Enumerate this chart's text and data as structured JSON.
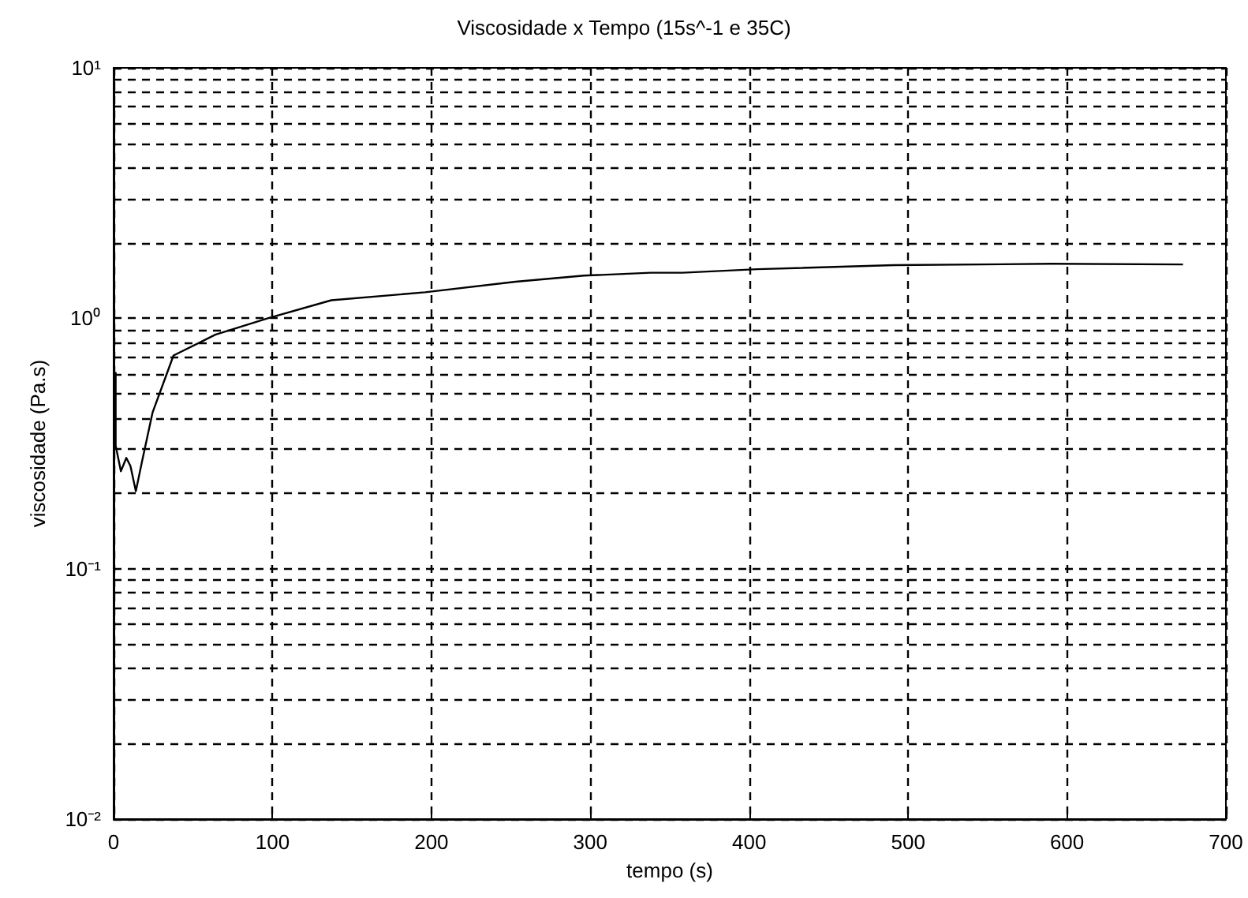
{
  "chart_data": {
    "type": "line",
    "title": "Viscosidade x Tempo (15s^-1 e 35C)",
    "xlabel": "tempo (s)",
    "ylabel": "viscosidade (Pa.s)",
    "log": "y",
    "grid": true,
    "marker": "none",
    "line_style": "solid",
    "xlim": [
      0,
      700
    ],
    "xticks": [
      0,
      100,
      200,
      300,
      400,
      500,
      600,
      700
    ],
    "ylim": [
      0.01,
      10
    ],
    "yticks": [
      {
        "value": 0.01,
        "label": "10⁻²"
      },
      {
        "value": 0.02,
        "label": null
      },
      {
        "value": 0.03,
        "label": null
      },
      {
        "value": 0.04,
        "label": null
      },
      {
        "value": 0.05,
        "label": null
      },
      {
        "value": 0.06,
        "label": null
      },
      {
        "value": 0.07,
        "label": null
      },
      {
        "value": 0.08,
        "label": null
      },
      {
        "value": 0.09,
        "label": null
      },
      {
        "value": 0.1,
        "label": "10⁻¹"
      },
      {
        "value": 0.2,
        "label": null
      },
      {
        "value": 0.3,
        "label": null
      },
      {
        "value": 0.4,
        "label": null
      },
      {
        "value": 0.5,
        "label": null
      },
      {
        "value": 0.6,
        "label": null
      },
      {
        "value": 0.7,
        "label": null
      },
      {
        "value": 0.8,
        "label": null
      },
      {
        "value": 0.9,
        "label": null
      },
      {
        "value": 1,
        "label": "10⁰"
      },
      {
        "value": 2,
        "label": null
      },
      {
        "value": 3,
        "label": null
      },
      {
        "value": 4,
        "label": null
      },
      {
        "value": 5,
        "label": null
      },
      {
        "value": 6,
        "label": null
      },
      {
        "value": 7,
        "label": null
      },
      {
        "value": 8,
        "label": null
      },
      {
        "value": 9,
        "label": null
      },
      {
        "value": 10,
        "label": "10¹"
      }
    ],
    "series": [
      {
        "color": "#000000",
        "x": [
          1.3,
          1.3,
          4.6,
          8,
          10.6,
          14,
          18,
          24.5,
          37.7,
          64,
          97,
          137,
          196,
          253,
          296,
          338,
          358,
          405,
          491,
          590,
          673
        ],
        "values": [
          0.61,
          0.31,
          0.245,
          0.277,
          0.257,
          0.204,
          0.27,
          0.42,
          0.71,
          0.86,
          1.0,
          1.18,
          1.27,
          1.4,
          1.48,
          1.52,
          1.52,
          1.57,
          1.63,
          1.65,
          1.64
        ]
      }
    ]
  }
}
